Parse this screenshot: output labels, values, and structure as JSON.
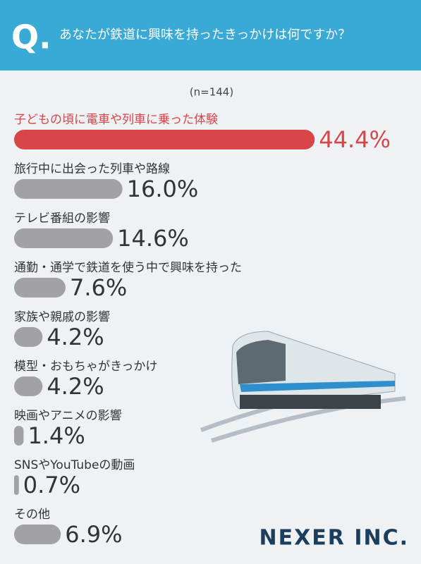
{
  "chart_data": {
    "type": "hbar",
    "question_mark": "Q.",
    "title": "あなたが鉄道に興味を持ったきっかけは何ですか？",
    "subtitle": "(n=144)",
    "categories": [
      "子どもの頃に電車や列車に乗った体験",
      "旅行中に出会った列車や路線",
      "テレビ番組の影響",
      "通勤・通学で鉄道を使う中で興味を持った",
      "家族や親戚の影響",
      "模型・おもちゃがきっかけ",
      "映画やアニメの影響",
      "SNSやYouTubeの動画",
      "その他"
    ],
    "values": [
      44.4,
      16.0,
      14.6,
      7.6,
      4.2,
      4.2,
      1.4,
      0.7,
      6.9
    ],
    "value_labels": [
      "44.4%",
      "16.0%",
      "14.6%",
      "7.6%",
      "4.2%",
      "4.2%",
      "1.4%",
      "0.7%",
      "6.9%"
    ],
    "colors": [
      "#d8464a",
      "#a2a2a4",
      "#a2a2a4",
      "#a2a2a4",
      "#a2a2a4",
      "#a2a2a4",
      "#a2a2a4",
      "#a2a2a4",
      "#a2a2a4"
    ]
  },
  "logo": "NEXER INC."
}
